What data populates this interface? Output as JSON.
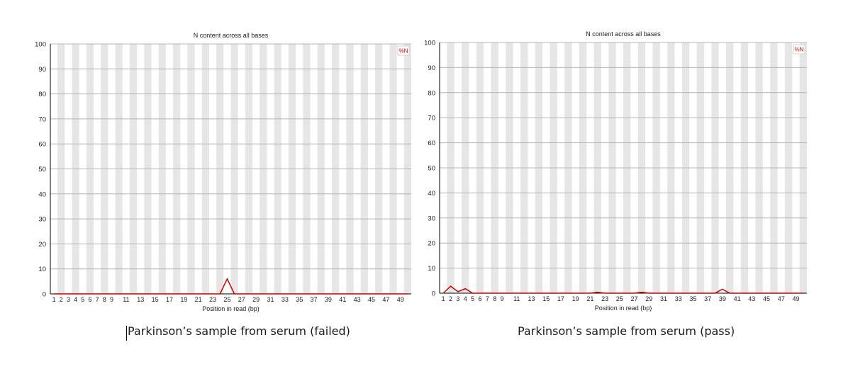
{
  "chart_data": [
    {
      "type": "line",
      "title": "N content across all bases",
      "xlabel": "Position in read (bp)",
      "ylabel": "",
      "ylim": [
        0,
        100
      ],
      "yticks": [
        0,
        10,
        20,
        30,
        40,
        50,
        60,
        70,
        80,
        90,
        100
      ],
      "x_tick_labels": [
        "1",
        "2",
        "3",
        "4",
        "5",
        "6",
        "7",
        "8",
        "9",
        "11",
        "13",
        "15",
        "17",
        "19",
        "21",
        "23",
        "25",
        "27",
        "29",
        "31",
        "33",
        "35",
        "37",
        "39",
        "41",
        "43",
        "45",
        "47",
        "49"
      ],
      "legend": "top-right",
      "series": [
        {
          "name": "%N",
          "color": "#cc0000",
          "values": [
            0,
            0,
            0,
            0,
            0,
            0,
            0,
            0,
            0,
            0,
            0,
            0,
            0,
            0,
            0,
            0,
            0,
            0,
            0,
            0,
            0,
            0,
            0,
            0,
            6,
            0,
            0,
            0,
            0,
            0,
            0,
            0,
            0,
            0,
            0,
            0,
            0,
            0,
            0,
            0,
            0,
            0,
            0,
            0,
            0,
            0,
            0,
            0,
            0,
            0
          ]
        }
      ],
      "caption": "Parkinson’s sample from serum (failed)"
    },
    {
      "type": "line",
      "title": "N content across all bases",
      "xlabel": "Position in read (bp)",
      "ylabel": "",
      "ylim": [
        0,
        100
      ],
      "yticks": [
        0,
        10,
        20,
        30,
        40,
        50,
        60,
        70,
        80,
        90,
        100
      ],
      "x_tick_labels": [
        "1",
        "2",
        "3",
        "4",
        "5",
        "6",
        "7",
        "8",
        "9",
        "11",
        "13",
        "15",
        "17",
        "19",
        "21",
        "23",
        "25",
        "27",
        "29",
        "31",
        "33",
        "35",
        "37",
        "39",
        "41",
        "43",
        "45",
        "47",
        "49"
      ],
      "legend": "top-right",
      "series": [
        {
          "name": "%N",
          "color": "#cc0000",
          "values": [
            0,
            2.8,
            0.6,
            1.8,
            0,
            0,
            0,
            0,
            0,
            0,
            0,
            0,
            0,
            0,
            0,
            0,
            0,
            0,
            0,
            0,
            0,
            0.4,
            0,
            0,
            0,
            0,
            0,
            0.4,
            0,
            0,
            0,
            0,
            0,
            0,
            0,
            0,
            0,
            0,
            1.6,
            0,
            0,
            0,
            0,
            0,
            0,
            0,
            0,
            0,
            0,
            0
          ]
        }
      ],
      "caption": "Parkinson’s sample from serum (pass)"
    }
  ]
}
